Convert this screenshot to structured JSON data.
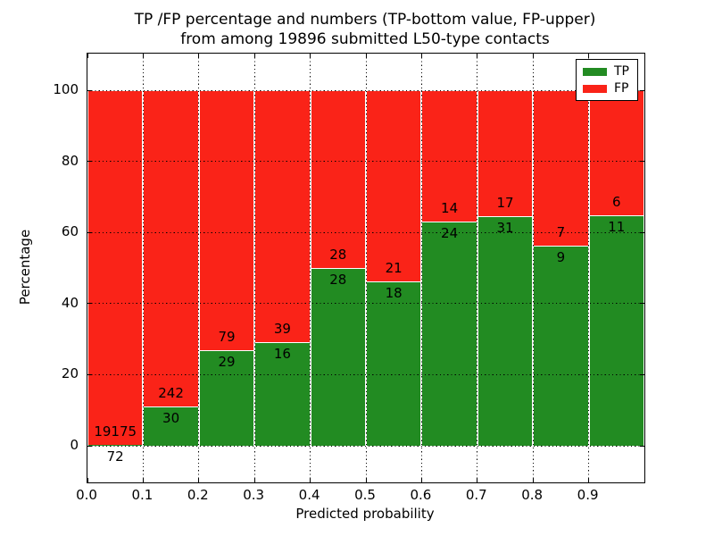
{
  "title": {
    "line1": "TP /FP percentage and numbers (TP-bottom value, FP-upper)",
    "line2": "from among 19896 submitted L50-type contacts"
  },
  "chart_data": {
    "type": "bar",
    "stacked": true,
    "title": "TP /FP percentage and numbers (TP-bottom value, FP-upper) from among 19896 submitted L50-type contacts",
    "total_contacts": 19896,
    "xlabel": "Predicted probability",
    "ylabel": "Percentage",
    "xlim": [
      0.0,
      1.0
    ],
    "ylim": [
      -10.3,
      110.3
    ],
    "bin_width": 0.1,
    "bin_starts": [
      0.0,
      0.1,
      0.2,
      0.3,
      0.4,
      0.5,
      0.6,
      0.7,
      0.8,
      0.9
    ],
    "x_tick_labels": [
      "0.0",
      "0.1",
      "0.2",
      "0.3",
      "0.4",
      "0.5",
      "0.6",
      "0.7",
      "0.8",
      "0.9"
    ],
    "y_ticks": [
      0,
      20,
      40,
      60,
      80,
      100
    ],
    "y_tick_labels": [
      "0",
      "20",
      "40",
      "60",
      "80",
      "100"
    ],
    "grid": {
      "style": "dotted",
      "color": "#000000",
      "on": true
    },
    "bar_edge_color": "#ffffff",
    "series": [
      {
        "name": "TP",
        "color": "#228b22",
        "counts": [
          72,
          30,
          29,
          16,
          28,
          18,
          24,
          31,
          9,
          11
        ]
      },
      {
        "name": "FP",
        "color": "#fa2318",
        "counts": [
          19175,
          242,
          79,
          39,
          28,
          21,
          14,
          17,
          7,
          6
        ]
      }
    ],
    "tp_percentages": [
      0.37,
      11.03,
      26.85,
      29.09,
      50.0,
      46.15,
      63.16,
      64.58,
      56.25,
      64.71
    ],
    "fp_percentages": [
      99.63,
      88.97,
      73.15,
      70.91,
      50.0,
      53.85,
      36.84,
      35.42,
      43.75,
      35.29
    ],
    "legend": {
      "position": "upper-right",
      "entries": [
        {
          "label": "TP",
          "color": "#228b22"
        },
        {
          "label": "FP",
          "color": "#fa2318"
        }
      ]
    }
  }
}
